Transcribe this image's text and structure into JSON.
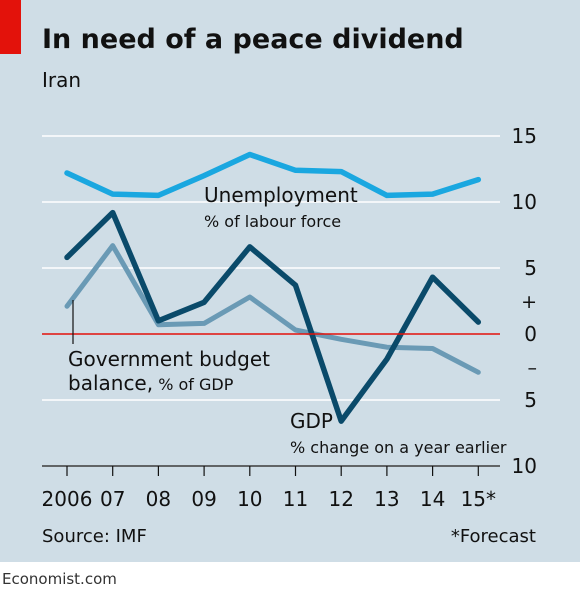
{
  "header": {
    "title": "In need of a peace dividend",
    "subtitle": "Iran"
  },
  "footer": {
    "source": "Source: IMF",
    "footnote": "*Forecast",
    "brand": "Economist.com"
  },
  "colors": {
    "unemployment": "#1aa7e0",
    "gdp": "#0a4a6a",
    "budget": "#6a9ab5",
    "zero_line": "#e3120b",
    "background": "#cfdde6",
    "grid": "#ffffff"
  },
  "chart_data": {
    "type": "line",
    "categories": [
      "2006",
      "07",
      "08",
      "09",
      "10",
      "11",
      "12",
      "13",
      "14",
      "15*"
    ],
    "ylim": [
      -10,
      15
    ],
    "yticks": [
      15,
      10,
      5,
      2.5,
      0,
      -2.5,
      -5,
      -10
    ],
    "ytick_labels": [
      "15",
      "10",
      "5",
      "+",
      "0",
      "–",
      "5",
      "10"
    ],
    "grid": true,
    "series": [
      {
        "key": "unemployment",
        "name": "Unemployment",
        "unit": "% of labour force",
        "values": [
          12.2,
          10.6,
          10.5,
          12.0,
          13.6,
          12.4,
          12.3,
          10.5,
          10.6,
          11.7
        ]
      },
      {
        "key": "gdp",
        "name": "GDP",
        "unit": "% change on a year earlier",
        "values": [
          5.8,
          9.2,
          1.0,
          2.4,
          6.6,
          3.7,
          -6.6,
          -1.9,
          4.3,
          0.9
        ]
      },
      {
        "key": "budget",
        "name": "Government budget",
        "unit": "balance, % of GDP",
        "values": [
          2.1,
          6.7,
          0.7,
          0.8,
          2.8,
          0.3,
          -0.4,
          -1.0,
          -1.1,
          -2.9
        ]
      }
    ]
  }
}
